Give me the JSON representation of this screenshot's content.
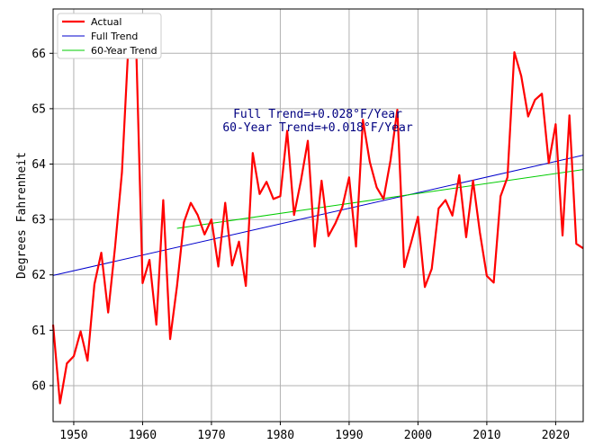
{
  "chart_data": {
    "type": "line",
    "title": "",
    "xlabel": "",
    "ylabel": "Degrees Fahrenheit",
    "xlim": [
      1947,
      2024
    ],
    "ylim": [
      59.35,
      66.8
    ],
    "x_ticks": [
      1950,
      1960,
      1970,
      1980,
      1990,
      2000,
      2010,
      2020
    ],
    "y_ticks": [
      60,
      61,
      62,
      63,
      64,
      65,
      66
    ],
    "grid": true,
    "legend_position": "top-left",
    "annotations": [
      "Full Trend=+0.028°F/Year",
      "60-Year Trend=+0.018°F/Year"
    ],
    "annotation_color": "#000080",
    "series": [
      {
        "name": "Actual",
        "color": "#ff0000",
        "x": [
          1947,
          1948,
          1949,
          1950,
          1951,
          1952,
          1953,
          1954,
          1955,
          1956,
          1957,
          1958,
          1959,
          1960,
          1961,
          1962,
          1963,
          1964,
          1965,
          1966,
          1967,
          1968,
          1969,
          1970,
          1971,
          1972,
          1973,
          1974,
          1975,
          1976,
          1977,
          1978,
          1979,
          1980,
          1981,
          1982,
          1983,
          1984,
          1985,
          1986,
          1987,
          1988,
          1989,
          1990,
          1991,
          1992,
          1993,
          1994,
          1995,
          1996,
          1997,
          1998,
          1999,
          2000,
          2001,
          2002,
          2003,
          2004,
          2005,
          2006,
          2007,
          2008,
          2009,
          2010,
          2011,
          2012,
          2013,
          2014,
          2015,
          2016,
          2017,
          2018,
          2019,
          2020,
          2021,
          2022,
          2023,
          2024
        ],
        "y": [
          61.1,
          59.68,
          60.4,
          60.53,
          60.98,
          60.45,
          61.83,
          62.4,
          61.32,
          62.5,
          63.85,
          66.3,
          66.45,
          61.85,
          62.27,
          61.1,
          63.35,
          60.84,
          61.8,
          62.95,
          63.3,
          63.08,
          62.73,
          63.0,
          62.15,
          63.3,
          62.17,
          62.6,
          61.8,
          64.2,
          63.46,
          63.68,
          63.37,
          63.42,
          64.6,
          63.08,
          63.7,
          64.42,
          62.51,
          63.7,
          62.7,
          62.93,
          63.22,
          63.76,
          62.51,
          64.8,
          64.04,
          63.58,
          63.37,
          64.06,
          64.98,
          62.14,
          62.58,
          63.05,
          61.78,
          62.11,
          63.2,
          63.35,
          63.07,
          63.8,
          62.68,
          63.7,
          62.76,
          61.98,
          61.86,
          63.42,
          63.76,
          66.02,
          65.59,
          64.86,
          65.16,
          65.27,
          64.02,
          64.72,
          62.71,
          64.88,
          62.56,
          62.48
        ]
      },
      {
        "name": "Full Trend",
        "color": "#0000cc",
        "x": [
          1947,
          2024
        ],
        "y": [
          61.99,
          64.16
        ]
      },
      {
        "name": "60-Year Trend",
        "color": "#00cc00",
        "x": [
          1965,
          2024
        ],
        "y": [
          62.84,
          63.9
        ]
      }
    ]
  }
}
